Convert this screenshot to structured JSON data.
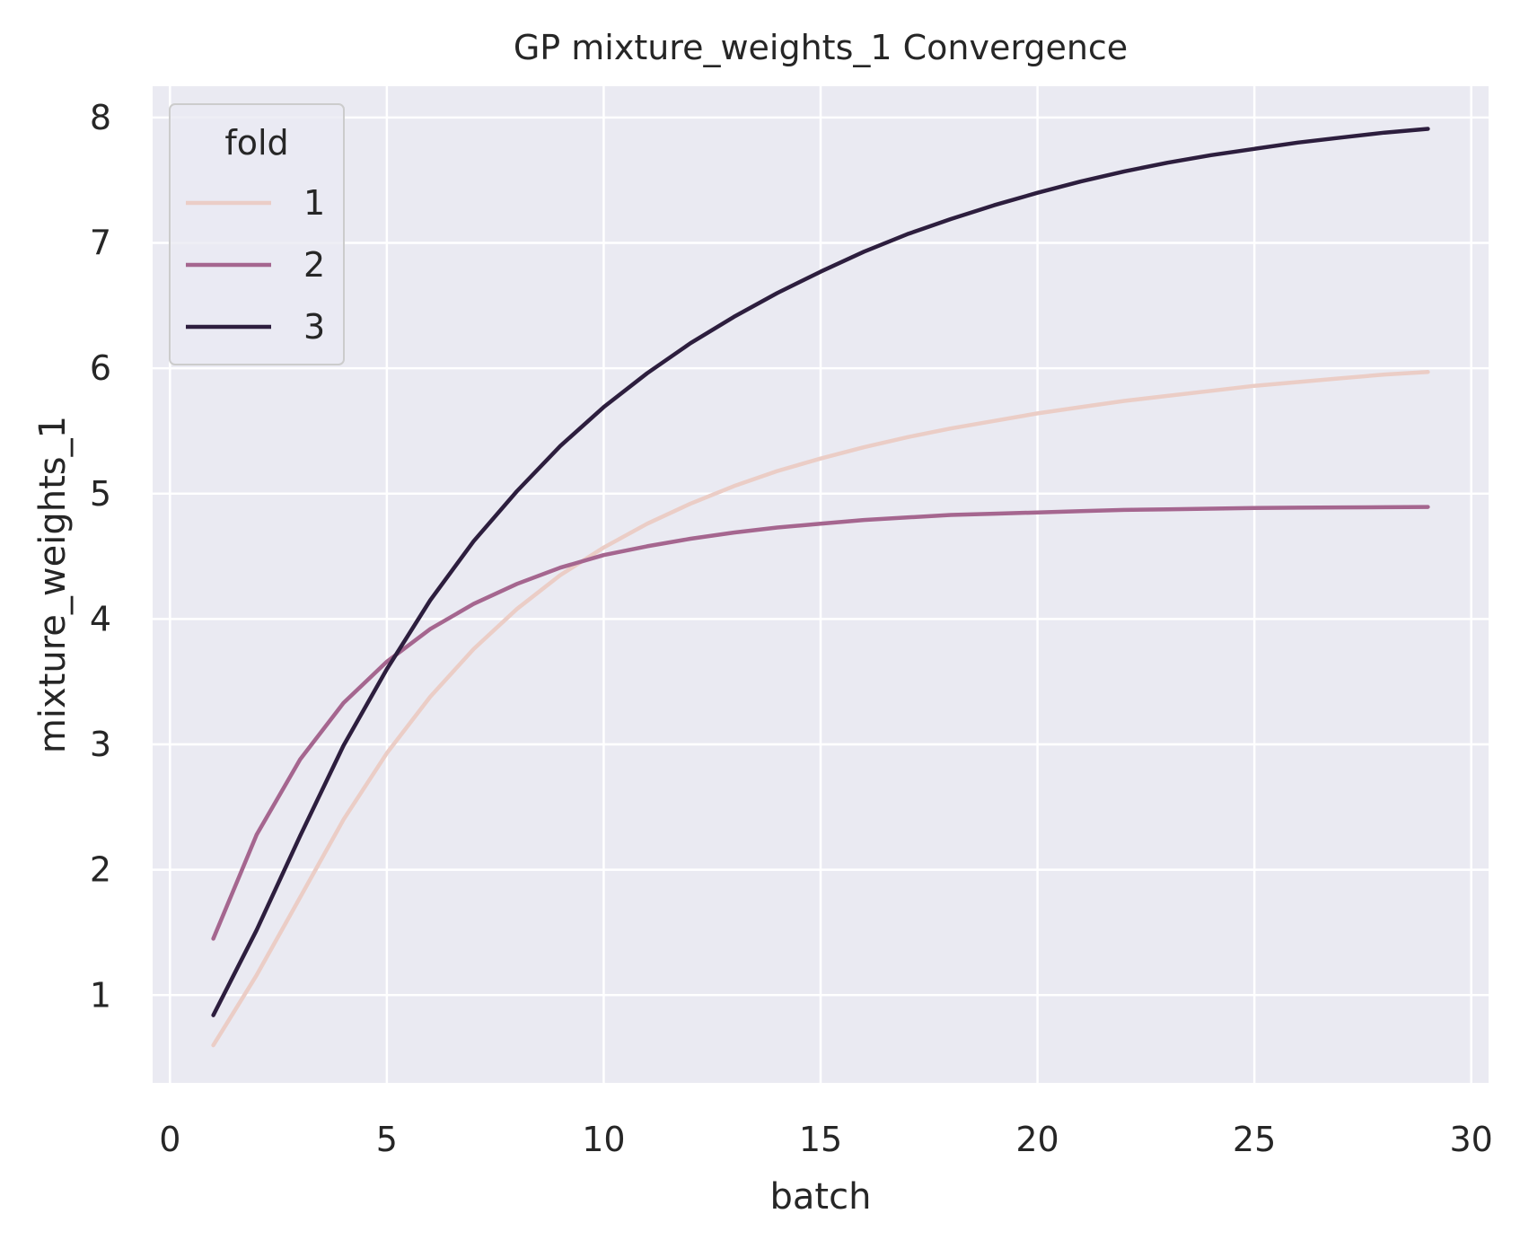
{
  "chart_data": {
    "type": "line",
    "title": "GP mixture_weights_1 Convergence",
    "xlabel": "batch",
    "ylabel": "mixture_weights_1",
    "xlim": [
      -0.4,
      30.4
    ],
    "ylim": [
      0.3,
      8.25
    ],
    "xticks": [
      0,
      5,
      10,
      15,
      20,
      25,
      30
    ],
    "yticks": [
      1,
      2,
      3,
      4,
      5,
      6,
      7,
      8
    ],
    "grid": true,
    "legend": {
      "title": "fold",
      "placement": "top-left"
    },
    "x": [
      1,
      2,
      3,
      4,
      5,
      6,
      7,
      8,
      9,
      10,
      11,
      12,
      13,
      14,
      15,
      16,
      17,
      18,
      19,
      20,
      21,
      22,
      23,
      24,
      25,
      26,
      27,
      28,
      29
    ],
    "series": [
      {
        "name": "1",
        "color": "#ebcdc6",
        "values": [
          0.6,
          1.16,
          1.78,
          2.4,
          2.93,
          3.38,
          3.76,
          4.08,
          4.35,
          4.57,
          4.76,
          4.92,
          5.06,
          5.18,
          5.28,
          5.37,
          5.45,
          5.52,
          5.58,
          5.64,
          5.69,
          5.74,
          5.78,
          5.82,
          5.86,
          5.89,
          5.92,
          5.95,
          5.97
        ]
      },
      {
        "name": "2",
        "color": "#a5668f",
        "values": [
          1.45,
          2.28,
          2.88,
          3.33,
          3.66,
          3.92,
          4.12,
          4.28,
          4.41,
          4.51,
          4.58,
          4.64,
          4.69,
          4.73,
          4.76,
          4.79,
          4.81,
          4.83,
          4.84,
          4.85,
          4.86,
          4.87,
          4.875,
          4.88,
          4.885,
          4.888,
          4.89,
          4.892,
          4.894
        ]
      },
      {
        "name": "3",
        "color": "#2d1e3e",
        "values": [
          0.84,
          1.52,
          2.27,
          2.99,
          3.6,
          4.15,
          4.62,
          5.02,
          5.38,
          5.69,
          5.96,
          6.2,
          6.41,
          6.6,
          6.77,
          6.93,
          7.07,
          7.19,
          7.3,
          7.4,
          7.49,
          7.57,
          7.64,
          7.7,
          7.75,
          7.8,
          7.84,
          7.88,
          7.91
        ]
      }
    ]
  }
}
